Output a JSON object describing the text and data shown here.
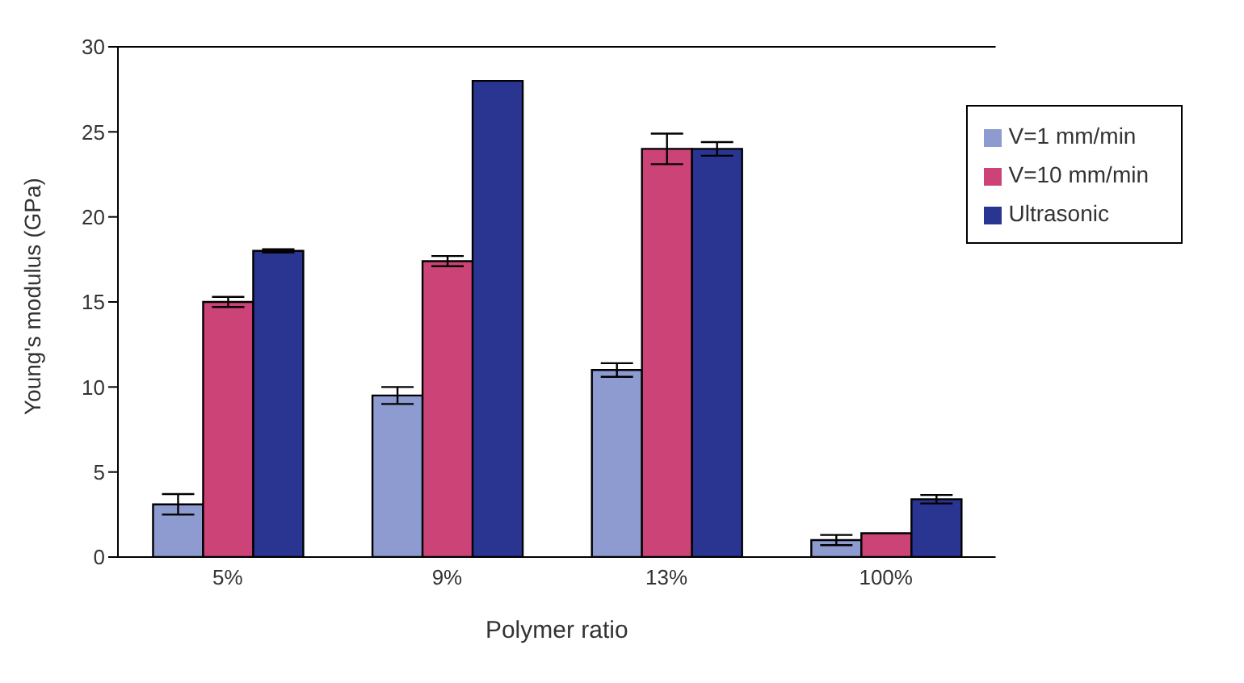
{
  "chart_data": {
    "type": "bar",
    "xlabel": "Polymer ratio",
    "ylabel": "Young's modulus (GPa)",
    "categories": [
      "5%",
      "9%",
      "13%",
      "100%"
    ],
    "series": [
      {
        "name": "V=1 mm/min",
        "color": "#8e9bd0",
        "values": [
          3.1,
          9.5,
          11.0,
          1.0
        ],
        "errors": [
          0.6,
          0.5,
          0.4,
          0.3
        ]
      },
      {
        "name": "V=10 mm/min",
        "color": "#cc4477",
        "values": [
          15.0,
          17.4,
          24.0,
          1.4
        ],
        "errors": [
          0.3,
          0.3,
          0.9,
          null
        ]
      },
      {
        "name": "Ultrasonic",
        "color": "#2a3592",
        "values": [
          18.0,
          28.0,
          24.0,
          3.4
        ],
        "errors": [
          0.1,
          null,
          0.4,
          0.25
        ]
      }
    ],
    "ylim": [
      0,
      30
    ],
    "yticks": [
      0,
      5,
      10,
      15,
      20,
      25,
      30
    ],
    "grid": false,
    "legend": "top right"
  }
}
